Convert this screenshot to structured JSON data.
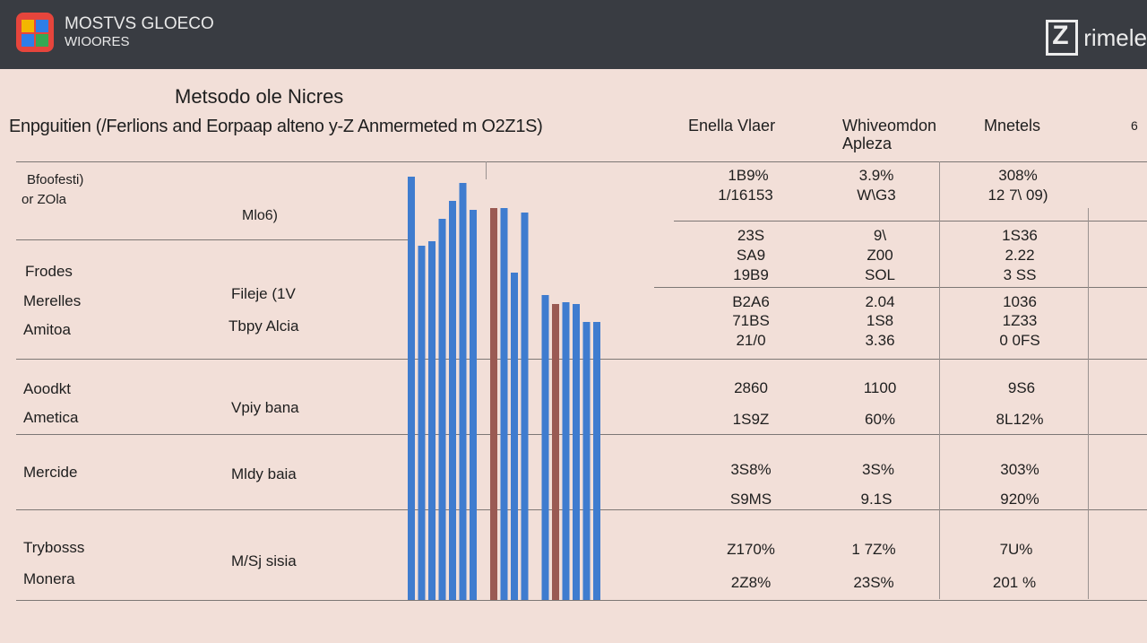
{
  "header": {
    "brand_line1": "MOSTVS GLOECO",
    "brand_line2": "WIOORES",
    "corner_text": "rimele"
  },
  "colors": {
    "topbar": "#393c42",
    "background": "#f2dfd8",
    "bar_blue": "#3f7ccf",
    "bar_red": "#9a5a53",
    "bar_teal": "#2a9fd6"
  },
  "main": {
    "title": "Metsodo ole Nicres",
    "subtitle": "Enpguitien (/Ferlions and Eorpaap alteno y-Z Anmermeted m O2Z1S)",
    "col_headers": [
      "Enella Vlaer",
      "Whiveomdon Apleza",
      "Mnetels",
      "6"
    ],
    "left_header": {
      "line1": "Bfoofesti)",
      "line2": "or ZOla",
      "mid": "Mlo6)"
    },
    "groups": [
      {
        "labels": [
          "Frodes",
          "Merelles",
          "Amitoa"
        ],
        "desc": [
          "Fileje (1V",
          "Tbpy Alcia"
        ]
      },
      {
        "labels": [
          "Aoodkt",
          "Ametica"
        ],
        "desc": [
          "Vpiy bana"
        ]
      },
      {
        "labels": [
          "Mercide"
        ],
        "desc": [
          "Mldy baia"
        ]
      },
      {
        "labels": [
          "Trybosss",
          "Monera"
        ],
        "desc": [
          "M/Sj sisia"
        ]
      }
    ],
    "table": {
      "col1": [
        "1B9%",
        "1/16153",
        "23S",
        "SA9",
        "19B9",
        "B2A6",
        "71BS",
        "21/0",
        "2860",
        "1S9Z",
        "3S8%",
        "S9MS",
        "Z170%",
        "2Z8%"
      ],
      "col2": [
        "3.9%",
        "W\\G3",
        "9\\",
        "Z00",
        "SOL",
        "2.04",
        "1S8",
        "3.36",
        "1100",
        "60%",
        "3S%",
        "9.1S",
        "1 7Z%",
        "23S%"
      ],
      "col3": [
        "308%",
        "12 7\\ 09)",
        "1S36",
        "2.22",
        "3 SS",
        "1036",
        "1Z33",
        "0 0FS",
        "9S6",
        "8L12%",
        "303%",
        "920%",
        "7U%",
        "201 %"
      ]
    }
  },
  "chart_data": {
    "type": "bar",
    "categories": [
      "",
      "",
      "",
      "",
      "",
      "",
      "",
      "",
      "",
      "",
      "",
      "",
      "",
      "",
      "",
      "",
      "",
      "",
      "",
      "",
      "",
      "",
      "",
      "",
      ""
    ],
    "series": [
      {
        "values": [
          472,
          395,
          400,
          425,
          445,
          465,
          435,
          0,
          437,
          437,
          365,
          432,
          0,
          340,
          330,
          332,
          330,
          310,
          310,
          0,
          0,
          0,
          0,
          0,
          0
        ]
      }
    ]
  }
}
